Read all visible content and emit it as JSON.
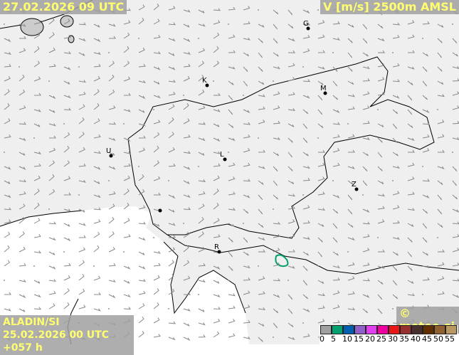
{
  "header": {
    "valid_time": "27.02.2026 09 UTC",
    "parameter": "V [m/s] 2500m AMSL"
  },
  "footer": {
    "model": "ALADIN/SI",
    "run": "25.02.2026 00 UTC +057 h",
    "copyright": "© meteo.si"
  },
  "legend": {
    "ticks": [
      "0",
      "5",
      "10",
      "15",
      "20",
      "25",
      "30",
      "35",
      "40",
      "45",
      "50",
      "55"
    ],
    "colors": [
      "#a0a0a0",
      "#00a070",
      "#0060b0",
      "#9060c8",
      "#e040f0",
      "#f000a0",
      "#e81818",
      "#983030",
      "#483030",
      "#603000",
      "#906030",
      "#b89860"
    ]
  },
  "cities": [
    {
      "label": "G"
    },
    {
      "label": "K"
    },
    {
      "label": "M"
    },
    {
      "label": "U"
    },
    {
      "label": "L"
    },
    {
      "label": "Z"
    },
    {
      "label": "R"
    },
    {
      "label": ""
    }
  ],
  "colors": {
    "land": "#efefef",
    "sea": "#ffffff",
    "border": "#000000",
    "barb": "#888888",
    "contour": "#00a070"
  }
}
